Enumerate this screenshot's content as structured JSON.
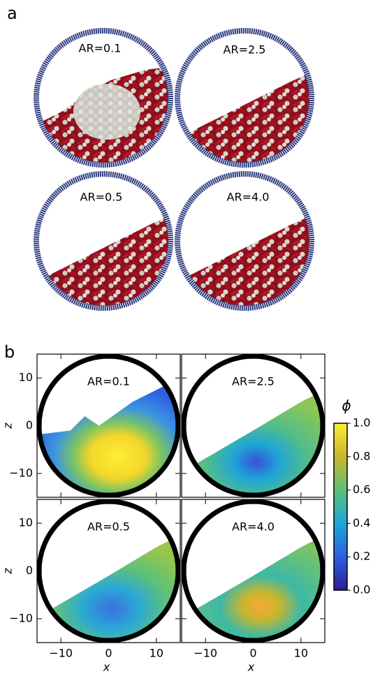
{
  "panel_a": {
    "label": "a",
    "snapshots": [
      "AR=0.1",
      "AR=2.5",
      "AR=0.5",
      "AR=4.0"
    ]
  },
  "chart_data": {
    "type": "heatmap",
    "label": "b",
    "panels": [
      "AR=0.1",
      "AR=2.5",
      "AR=0.5",
      "AR=4.0"
    ],
    "xlabel": "x",
    "ylabel": "z",
    "xlim": [
      -15,
      15
    ],
    "ylim": [
      -15,
      15
    ],
    "xticks": [
      {
        "value": -10,
        "label": "−10"
      },
      0,
      10
    ],
    "yticks": [
      {
        "value": -10,
        "label": "−10"
      },
      0,
      10
    ],
    "colorbar": {
      "label": "ϕ",
      "lim": [
        0,
        1
      ],
      "ticks": [
        {
          "value": 0,
          "label": "0.0"
        },
        {
          "value": 0.2,
          "label": "0.2"
        },
        {
          "value": 0.4,
          "label": "0.4"
        },
        {
          "value": 0.6,
          "label": "0.6"
        },
        {
          "value": 0.8,
          "label": "0.8"
        },
        {
          "value": 1,
          "label": "1.0"
        }
      ]
    }
  }
}
